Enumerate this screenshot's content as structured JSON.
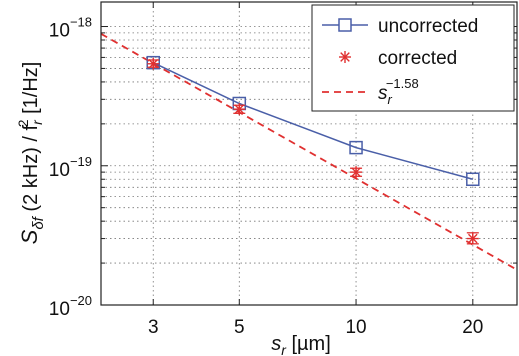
{
  "chart_data": {
    "type": "line",
    "xscale": "log",
    "yscale": "log",
    "xlim": [
      2.2,
      26
    ],
    "ylim": [
      1e-20,
      1.5e-18
    ],
    "xticks": [
      {
        "value": 3,
        "label": "3"
      },
      {
        "value": 5,
        "label": "5"
      },
      {
        "value": 10,
        "label": "10"
      },
      {
        "value": 20,
        "label": "20"
      }
    ],
    "yticks": [
      {
        "value": 1e-20,
        "base": "10",
        "exp": "−20"
      },
      {
        "value": 1e-19,
        "base": "10",
        "exp": "−19"
      },
      {
        "value": 1e-18,
        "base": "10",
        "exp": "−18"
      }
    ],
    "xlabel": {
      "pre": "s",
      "sub": "r",
      "post": " [µm]"
    },
    "ylabel": {
      "main": "S",
      "sub1": "δf",
      "mid": " (2 kHz) / f",
      "sub2": "r",
      "sup2": "2",
      "post": " [1/Hz]"
    },
    "grid": true,
    "legend_position": "top-right",
    "series": [
      {
        "name": "uncorrected",
        "marker": "square",
        "color": "#4a5fa8",
        "x": [
          3,
          5,
          10,
          20
        ],
        "y": [
          5.5e-19,
          2.8e-19,
          1.35e-19,
          8e-20
        ]
      },
      {
        "name": "corrected",
        "marker": "asterisk",
        "color": "#e03030",
        "x": [
          3,
          5,
          10,
          20
        ],
        "y": [
          5.4e-19,
          2.55e-19,
          9e-20,
          3e-20
        ],
        "yerr_low": [
          5.1e-19,
          2.38e-19,
          8.4e-20,
          2.75e-20
        ],
        "yerr_high": [
          5.75e-19,
          2.72e-19,
          9.6e-20,
          3.3e-20
        ]
      }
    ],
    "fit": {
      "name": "s_r^{-1.58}",
      "legend": {
        "base": "s",
        "sub": "r",
        "exp": "−1.58"
      },
      "style": "dashed",
      "color": "#e03030",
      "exponent": -1.58,
      "coefficient": 3.08e-18
    }
  }
}
